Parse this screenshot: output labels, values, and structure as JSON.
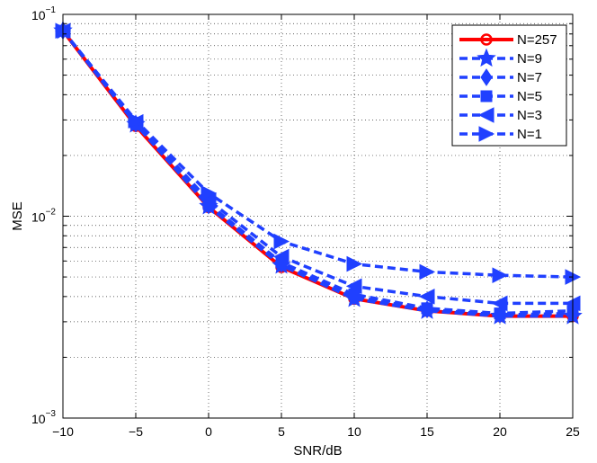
{
  "chart_data": {
    "type": "line",
    "title": "",
    "xlabel": "SNR/dB",
    "ylabel": "MSE",
    "x": [
      -10,
      -5,
      0,
      5,
      10,
      15,
      20,
      25
    ],
    "xlim": [
      -10,
      25
    ],
    "ylim": [
      0.001,
      0.1
    ],
    "yscale": "log",
    "grid": true,
    "legend_position": "top-right",
    "xticks": [
      -10,
      -5,
      0,
      5,
      10,
      15,
      20,
      25
    ],
    "xtick_labels": [
      "−10",
      "−5",
      "0",
      "5",
      "10",
      "15",
      "20",
      "25"
    ],
    "yticks": [
      0.001,
      0.01,
      0.1
    ],
    "ytick_labels": [
      {
        "base": "10",
        "exp": "−3"
      },
      {
        "base": "10",
        "exp": "−2"
      },
      {
        "base": "10",
        "exp": "−1"
      }
    ],
    "series": [
      {
        "name": "N=257",
        "color": "#ff0000",
        "marker": "circle",
        "style": "solid",
        "values": [
          0.083,
          0.028,
          0.0111,
          0.0056,
          0.0039,
          0.0034,
          0.0032,
          0.0032
        ]
      },
      {
        "name": "N=9",
        "color": "#2040ff",
        "marker": "star",
        "style": "dashed",
        "values": [
          0.083,
          0.0285,
          0.0112,
          0.0057,
          0.0039,
          0.0034,
          0.0032,
          0.0032
        ]
      },
      {
        "name": "N=7",
        "color": "#2040ff",
        "marker": "diamond",
        "style": "dashed",
        "values": [
          0.083,
          0.0287,
          0.0113,
          0.0058,
          0.004,
          0.00345,
          0.00325,
          0.0033
        ]
      },
      {
        "name": "N=5",
        "color": "#2040ff",
        "marker": "square",
        "style": "dashed",
        "values": [
          0.083,
          0.029,
          0.0115,
          0.0059,
          0.0041,
          0.0035,
          0.0033,
          0.0034
        ]
      },
      {
        "name": "N=3",
        "color": "#2040ff",
        "marker": "triangle-left",
        "style": "dashed",
        "values": [
          0.083,
          0.0293,
          0.012,
          0.0063,
          0.0045,
          0.004,
          0.0037,
          0.0037
        ]
      },
      {
        "name": "N=1",
        "color": "#2040ff",
        "marker": "triangle-right",
        "style": "dashed",
        "values": [
          0.083,
          0.0298,
          0.013,
          0.0075,
          0.0058,
          0.0053,
          0.0051,
          0.005
        ]
      }
    ]
  }
}
